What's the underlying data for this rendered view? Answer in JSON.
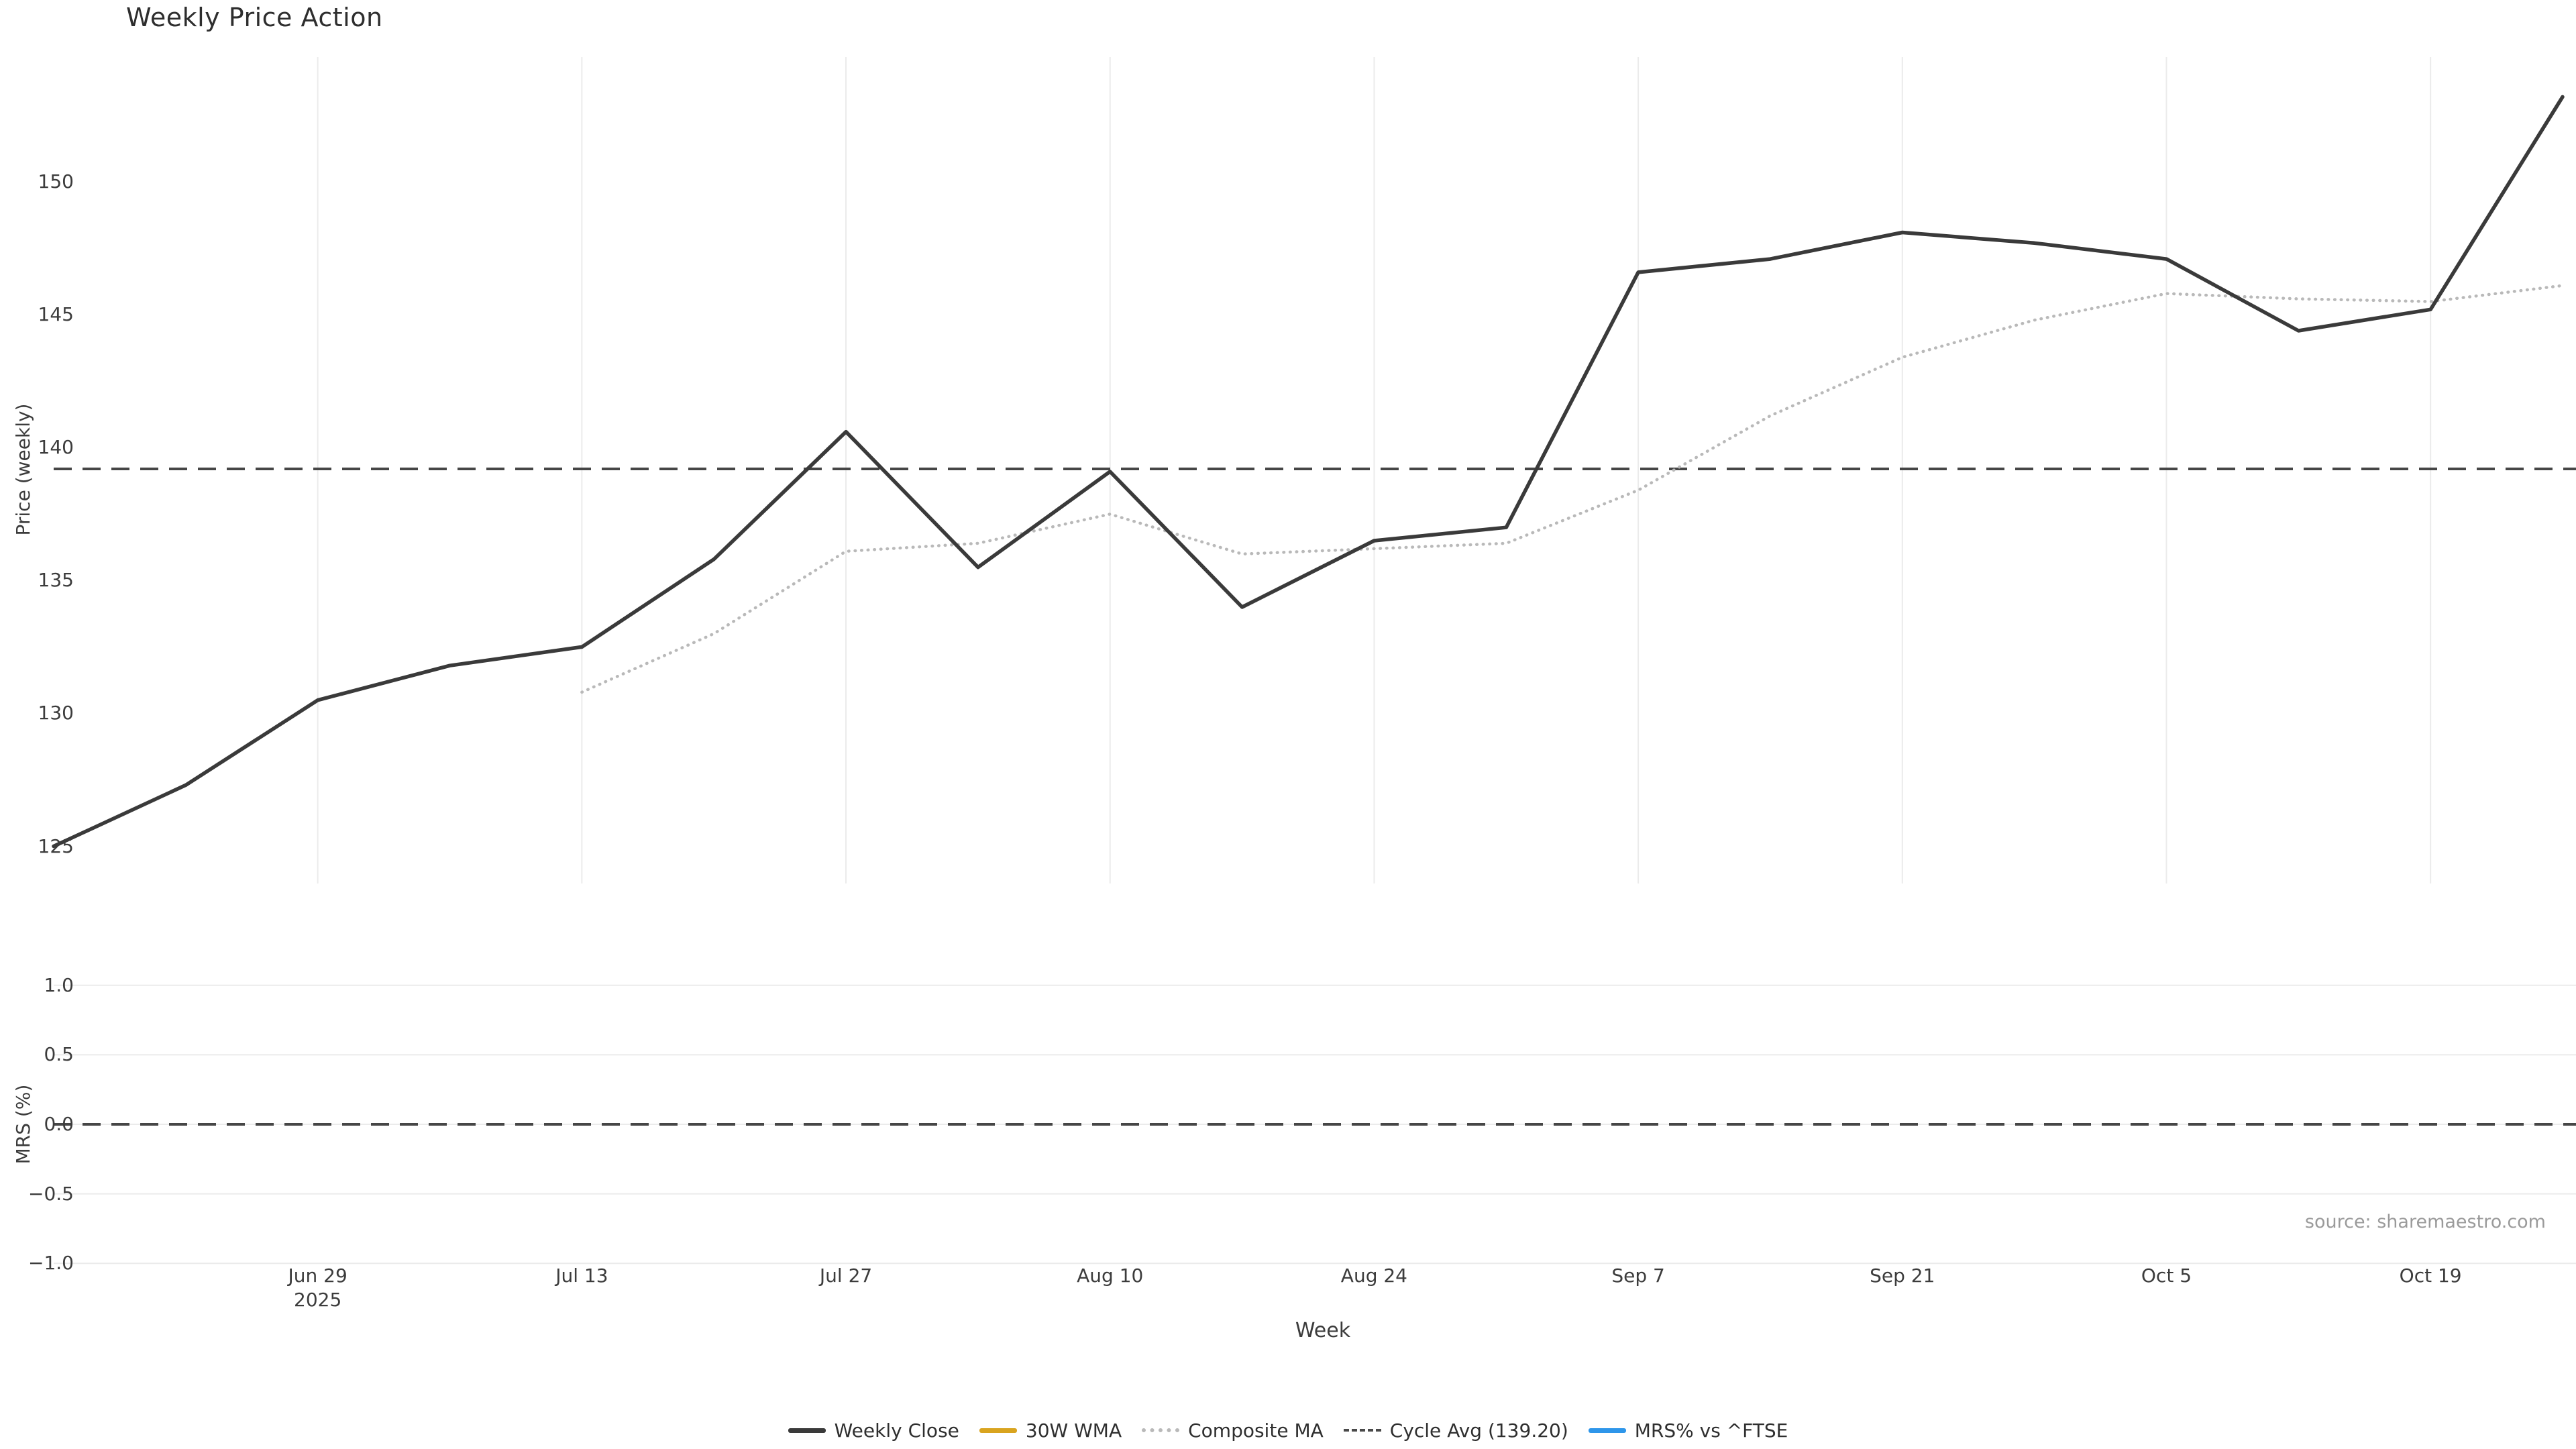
{
  "title": "Weekly Price Action",
  "xlabel": "Week",
  "source_note": "source: sharemaestro.com",
  "colors": {
    "weekly_close": "#3a3a3a",
    "wma_30w": "#d9a41f",
    "composite_ma": "#b9b9b9",
    "cycle_avg": "#4a4a4a",
    "mrs_line": "#2e96ea",
    "gridline": "#ebebeb",
    "text": "#3c3c3c",
    "source_text": "#9a9a9a"
  },
  "legend": {
    "items": [
      {
        "label": "Weekly Close",
        "style": "solid",
        "color": "#3a3a3a"
      },
      {
        "label": "30W WMA",
        "style": "solid",
        "color": "#d9a41f"
      },
      {
        "label": "Composite MA",
        "style": "dotted",
        "color": "#b9b9b9"
      },
      {
        "label": "Cycle Avg (139.20)",
        "style": "dashed",
        "color": "#4a4a4a"
      },
      {
        "label": "MRS% vs ^FTSE",
        "style": "solid",
        "color": "#2e96ea"
      }
    ]
  },
  "chart_data": [
    {
      "type": "line",
      "subplot": "price",
      "title": "Weekly Price Action",
      "ylabel": "Price (weekly)",
      "grid": "x",
      "n_points": 20,
      "ylim": [
        123.6,
        154.7
      ],
      "y_ticks": [
        125,
        130,
        135,
        140,
        145,
        150
      ],
      "y_tick_labels": [
        "125",
        "130",
        "135",
        "140",
        "145",
        "150"
      ],
      "x_tick_labels": [
        {
          "index": 2,
          "label": "Jun 29",
          "sublabel": "2025"
        },
        {
          "index": 4,
          "label": "Jul 13",
          "sublabel": ""
        },
        {
          "index": 6,
          "label": "Jul 27",
          "sublabel": ""
        },
        {
          "index": 8,
          "label": "Aug 10",
          "sublabel": ""
        },
        {
          "index": 10,
          "label": "Aug 24",
          "sublabel": ""
        },
        {
          "index": 12,
          "label": "Sep 7",
          "sublabel": ""
        },
        {
          "index": 14,
          "label": "Sep 21",
          "sublabel": ""
        },
        {
          "index": 16,
          "label": "Oct 5",
          "sublabel": ""
        },
        {
          "index": 18,
          "label": "Oct 19",
          "sublabel": ""
        }
      ],
      "series": [
        {
          "name": "Weekly Close",
          "style": "solid",
          "color": "#3a3a3a",
          "width": 5.5,
          "values": [
            125.0,
            127.3,
            130.5,
            131.8,
            132.5,
            135.8,
            140.6,
            135.5,
            139.1,
            134.0,
            136.5,
            137.0,
            146.6,
            147.1,
            148.1,
            147.7,
            147.1,
            144.4,
            145.2,
            153.2
          ]
        },
        {
          "name": "Composite MA",
          "style": "dotted",
          "color": "#b9b9b9",
          "width": 4.5,
          "values": [
            null,
            null,
            null,
            null,
            130.8,
            133.0,
            136.1,
            136.4,
            137.5,
            136.0,
            136.2,
            136.4,
            138.4,
            141.2,
            143.4,
            144.8,
            145.8,
            145.6,
            145.5,
            146.1
          ]
        },
        {
          "name": "Cycle Avg",
          "style": "dashed",
          "color": "#464646",
          "width": 4,
          "constant": 139.2
        }
      ]
    },
    {
      "type": "line",
      "subplot": "mrs",
      "ylabel": "MRS (%)",
      "grid": "y",
      "ylim": [
        -1.1,
        1.1
      ],
      "y_ticks": [
        1.0,
        0.5,
        0.0,
        -0.5,
        -1.0
      ],
      "y_tick_labels": [
        "1.0",
        "0.5",
        "0.0",
        "−0.5",
        "−1.0"
      ],
      "series": [
        {
          "name": "Zero line",
          "style": "dashed",
          "color": "#464646",
          "width": 4,
          "constant": 0.0
        }
      ]
    }
  ]
}
